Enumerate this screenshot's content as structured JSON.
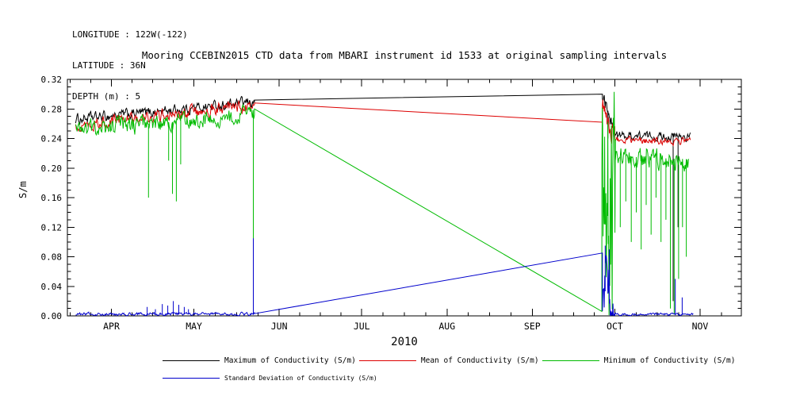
{
  "header": {
    "longitude": "LONGITUDE : 122W(-122)",
    "latitude": "LATITUDE : 36N",
    "depth": "DEPTH (m) : 5"
  },
  "title": "Mooring CCEBIN2015 CTD data from MBARI instrument id 1533 at original sampling intervals",
  "chart_data": {
    "type": "line",
    "title": "Mooring CCEBIN2015 CTD data from MBARI instrument id 1533 at original sampling intervals",
    "xlabel": "2010",
    "ylabel": "S/m",
    "x_unit": "day_of_year_2010",
    "x_range": [
      75,
      320
    ],
    "y_range": [
      0,
      0.32
    ],
    "grid": false,
    "legend_position": "bottom",
    "x_ticks": [
      {
        "day": 91,
        "label": "APR"
      },
      {
        "day": 121,
        "label": "MAY"
      },
      {
        "day": 152,
        "label": "JUN"
      },
      {
        "day": 182,
        "label": "JUL"
      },
      {
        "day": 213,
        "label": "AUG"
      },
      {
        "day": 244,
        "label": "SEP"
      },
      {
        "day": 274,
        "label": "OCT"
      },
      {
        "day": 305,
        "label": "NOV"
      }
    ],
    "y_ticks": [
      {
        "value": 0.0,
        "label": "0.00"
      },
      {
        "value": 0.04,
        "label": "0.04"
      },
      {
        "value": 0.08,
        "label": "0.08"
      },
      {
        "value": 0.12,
        "label": "0.12"
      },
      {
        "value": 0.16,
        "label": "0.16"
      },
      {
        "value": 0.2,
        "label": "0.20"
      },
      {
        "value": 0.24,
        "label": "0.24"
      },
      {
        "value": 0.28,
        "label": "0.28"
      },
      {
        "value": 0.32,
        "label": "0.32"
      }
    ],
    "series": [
      {
        "name": "Maximum of Conductivity (S/m)",
        "color": "#000000",
        "segments": [
          {
            "type": "noisy",
            "x0": 78,
            "x1": 143,
            "y0": 0.266,
            "y1": 0.289,
            "amp": 0.006,
            "density": 4
          },
          {
            "type": "line",
            "points": [
              [
                143,
                0.292
              ],
              [
                269.5,
                0.3
              ]
            ]
          },
          {
            "type": "noisy",
            "x0": 269.5,
            "x1": 274,
            "y0": 0.298,
            "y1": 0.247,
            "amp": 0.008,
            "density": 6,
            "spikes": [
              [
                271.5,
                0.24
              ]
            ]
          },
          {
            "type": "noisy",
            "x0": 274,
            "x1": 301.5,
            "y0": 0.244,
            "y1": 0.242,
            "amp": 0.005,
            "density": 4,
            "spikes": [
              [
                295.2,
                0.02
              ],
              [
                297.0,
                0.12
              ]
            ]
          }
        ]
      },
      {
        "name": "Mean of Conductivity (S/m)",
        "color": "#dd0000",
        "segments": [
          {
            "type": "noisy",
            "x0": 78,
            "x1": 143,
            "y0": 0.259,
            "y1": 0.284,
            "amp": 0.007,
            "density": 4
          },
          {
            "type": "line",
            "points": [
              [
                143,
                0.288
              ],
              [
                269.5,
                0.262
              ]
            ]
          },
          {
            "type": "noisy",
            "x0": 269.5,
            "x1": 274,
            "y0": 0.285,
            "y1": 0.24,
            "amp": 0.012,
            "density": 6
          },
          {
            "type": "noisy",
            "x0": 274,
            "x1": 301.5,
            "y0": 0.238,
            "y1": 0.236,
            "amp": 0.004,
            "density": 4
          }
        ]
      },
      {
        "name": "Minimum of Conductivity (S/m)",
        "color": "#00bb00",
        "segments": [
          {
            "type": "noisy",
            "x0": 78,
            "x1": 143,
            "y0": 0.251,
            "y1": 0.272,
            "amp": 0.01,
            "density": 4,
            "spikes": [
              [
                104.5,
                0.16
              ],
              [
                111.8,
                0.21
              ],
              [
                113.2,
                0.165
              ],
              [
                114.6,
                0.155
              ],
              [
                116.2,
                0.205
              ],
              [
                142.6,
                0.004
              ]
            ]
          },
          {
            "type": "line",
            "points": [
              [
                143,
                0.28
              ],
              [
                269.3,
                0.006
              ]
            ]
          },
          {
            "type": "noisy",
            "x0": 269.3,
            "x1": 274.2,
            "y0": 0.15,
            "y1": 0.15,
            "amp": 0.145,
            "density": 7,
            "min": 0.001,
            "max": 0.303
          },
          {
            "type": "noisy",
            "x0": 274.2,
            "x1": 300.8,
            "y0": 0.216,
            "y1": 0.212,
            "amp": 0.012,
            "density": 4,
            "spikes": [
              [
                276,
                0.12
              ],
              [
                278,
                0.155
              ],
              [
                280,
                0.1
              ],
              [
                281.8,
                0.14
              ],
              [
                283.6,
                0.09
              ],
              [
                285.4,
                0.15
              ],
              [
                287.2,
                0.11
              ],
              [
                289,
                0.16
              ],
              [
                290.8,
                0.1
              ],
              [
                292.6,
                0.13
              ],
              [
                294.2,
                0.01
              ],
              [
                295.6,
                0.002
              ],
              [
                297.2,
                0.05
              ],
              [
                298.6,
                0.12
              ],
              [
                300,
                0.08
              ]
            ]
          }
        ]
      },
      {
        "name": "Standard Deviation of Conductivity (S/m)",
        "color": "#0000cc",
        "segments": [
          {
            "type": "noisy",
            "x0": 78,
            "x1": 143,
            "y0": 0.0025,
            "y1": 0.0025,
            "amp": 0.0018,
            "density": 4,
            "min": 0.0003,
            "spikes": [
              [
                104,
                0.012
              ],
              [
                107,
                0.009
              ],
              [
                109.5,
                0.016
              ],
              [
                111.5,
                0.014
              ],
              [
                113.5,
                0.02
              ],
              [
                115.5,
                0.015
              ],
              [
                117.5,
                0.012
              ],
              [
                119,
                0.009
              ],
              [
                142.6,
                0.105
              ]
            ]
          },
          {
            "type": "line",
            "points": [
              [
                143,
                0.003
              ],
              [
                269.5,
                0.085
              ]
            ]
          },
          {
            "type": "noisy",
            "x0": 269.5,
            "x1": 274,
            "y0": 0.04,
            "y1": 0.01,
            "amp": 0.035,
            "density": 6,
            "min": 0.0005,
            "spikes": [
              [
                270.5,
                0.095
              ],
              [
                272,
                0.09
              ]
            ]
          },
          {
            "type": "noisy",
            "x0": 274,
            "x1": 302.5,
            "y0": 0.002,
            "y1": 0.002,
            "amp": 0.0015,
            "density": 4,
            "min": 0.0003,
            "spikes": [
              [
                296,
                0.05
              ],
              [
                298.5,
                0.025
              ]
            ]
          }
        ]
      }
    ]
  }
}
